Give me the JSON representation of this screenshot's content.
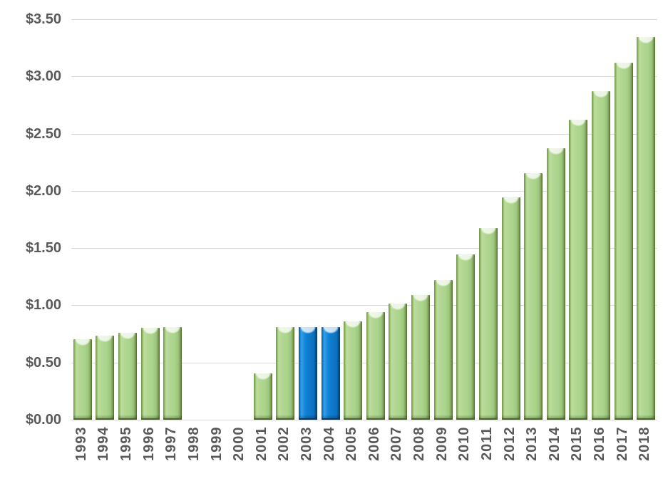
{
  "chart_data": {
    "type": "bar",
    "title": "",
    "xlabel": "",
    "ylabel": "",
    "categories": [
      "1993",
      "1994",
      "1995",
      "1996",
      "1997",
      "1998",
      "1999",
      "2000",
      "2001",
      "2002",
      "2003",
      "2004",
      "2005",
      "2006",
      "2007",
      "2008",
      "2009",
      "2010",
      "2011",
      "2012",
      "2013",
      "2014",
      "2015",
      "2016",
      "2017",
      "2018"
    ],
    "values": [
      0.69,
      0.72,
      0.75,
      0.79,
      0.8,
      0,
      0,
      0,
      0.39,
      0.8,
      0.8,
      0.8,
      0.85,
      0.93,
      1.0,
      1.08,
      1.21,
      1.43,
      1.66,
      1.93,
      2.14,
      2.36,
      2.61,
      2.86,
      3.11,
      3.33
    ],
    "highlighted_categories": [
      "2003",
      "2004"
    ],
    "y_ticks": [
      {
        "value": 0.0,
        "label": "$0.00"
      },
      {
        "value": 0.5,
        "label": "$0.50"
      },
      {
        "value": 1.0,
        "label": "$1.00"
      },
      {
        "value": 1.5,
        "label": "$1.50"
      },
      {
        "value": 2.0,
        "label": "$2.00"
      },
      {
        "value": 2.5,
        "label": "$2.50"
      },
      {
        "value": 3.0,
        "label": "$3.00"
      },
      {
        "value": 3.5,
        "label": "$3.50"
      }
    ],
    "ylim": [
      0,
      3.5
    ],
    "grid": true,
    "legend": false,
    "colors": {
      "bar_default": "#abd48c",
      "bar_highlight": "#0d78c9",
      "gridline": "#d9d9d9",
      "axis_text": "#595959",
      "background": "#ffffff"
    }
  }
}
